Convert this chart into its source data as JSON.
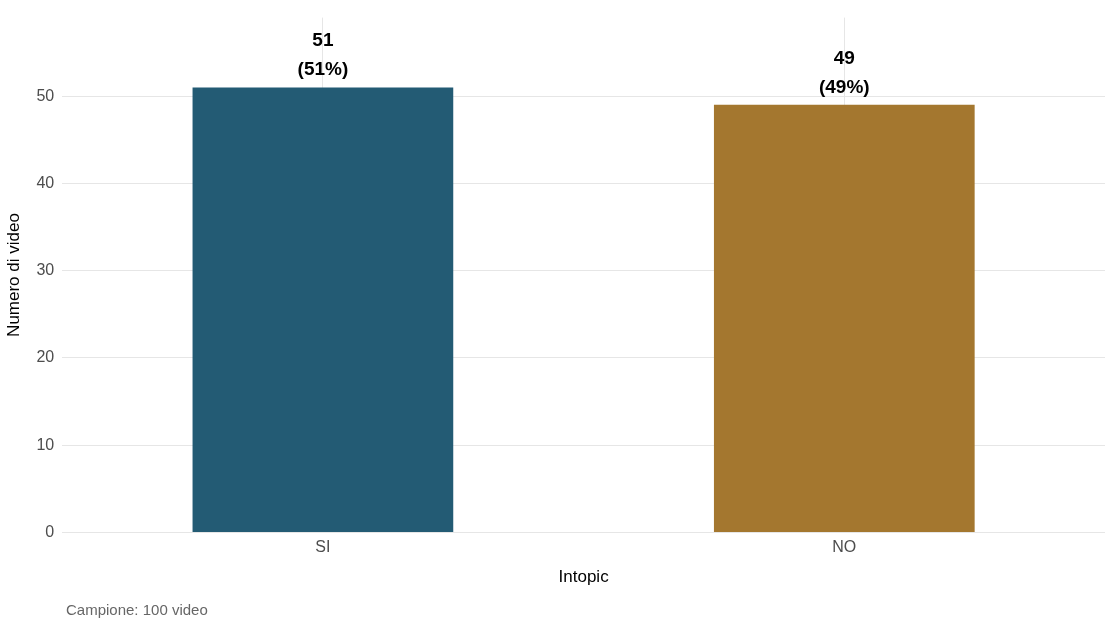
{
  "chart_data": {
    "type": "bar",
    "xlabel": "Intopic",
    "ylabel": "Numero di video",
    "categories": [
      "SI",
      "NO"
    ],
    "values": [
      51,
      49
    ],
    "colors": [
      "#235b74",
      "#a4772f"
    ],
    "value_labels": [
      "51\n(51%)",
      "49\n(49%)"
    ],
    "ylim": [
      0,
      59
    ],
    "yticks": [
      0,
      10,
      20,
      30,
      40,
      50
    ],
    "grid": true,
    "legend": false,
    "annotations": [
      "Campione: 100 video"
    ]
  }
}
